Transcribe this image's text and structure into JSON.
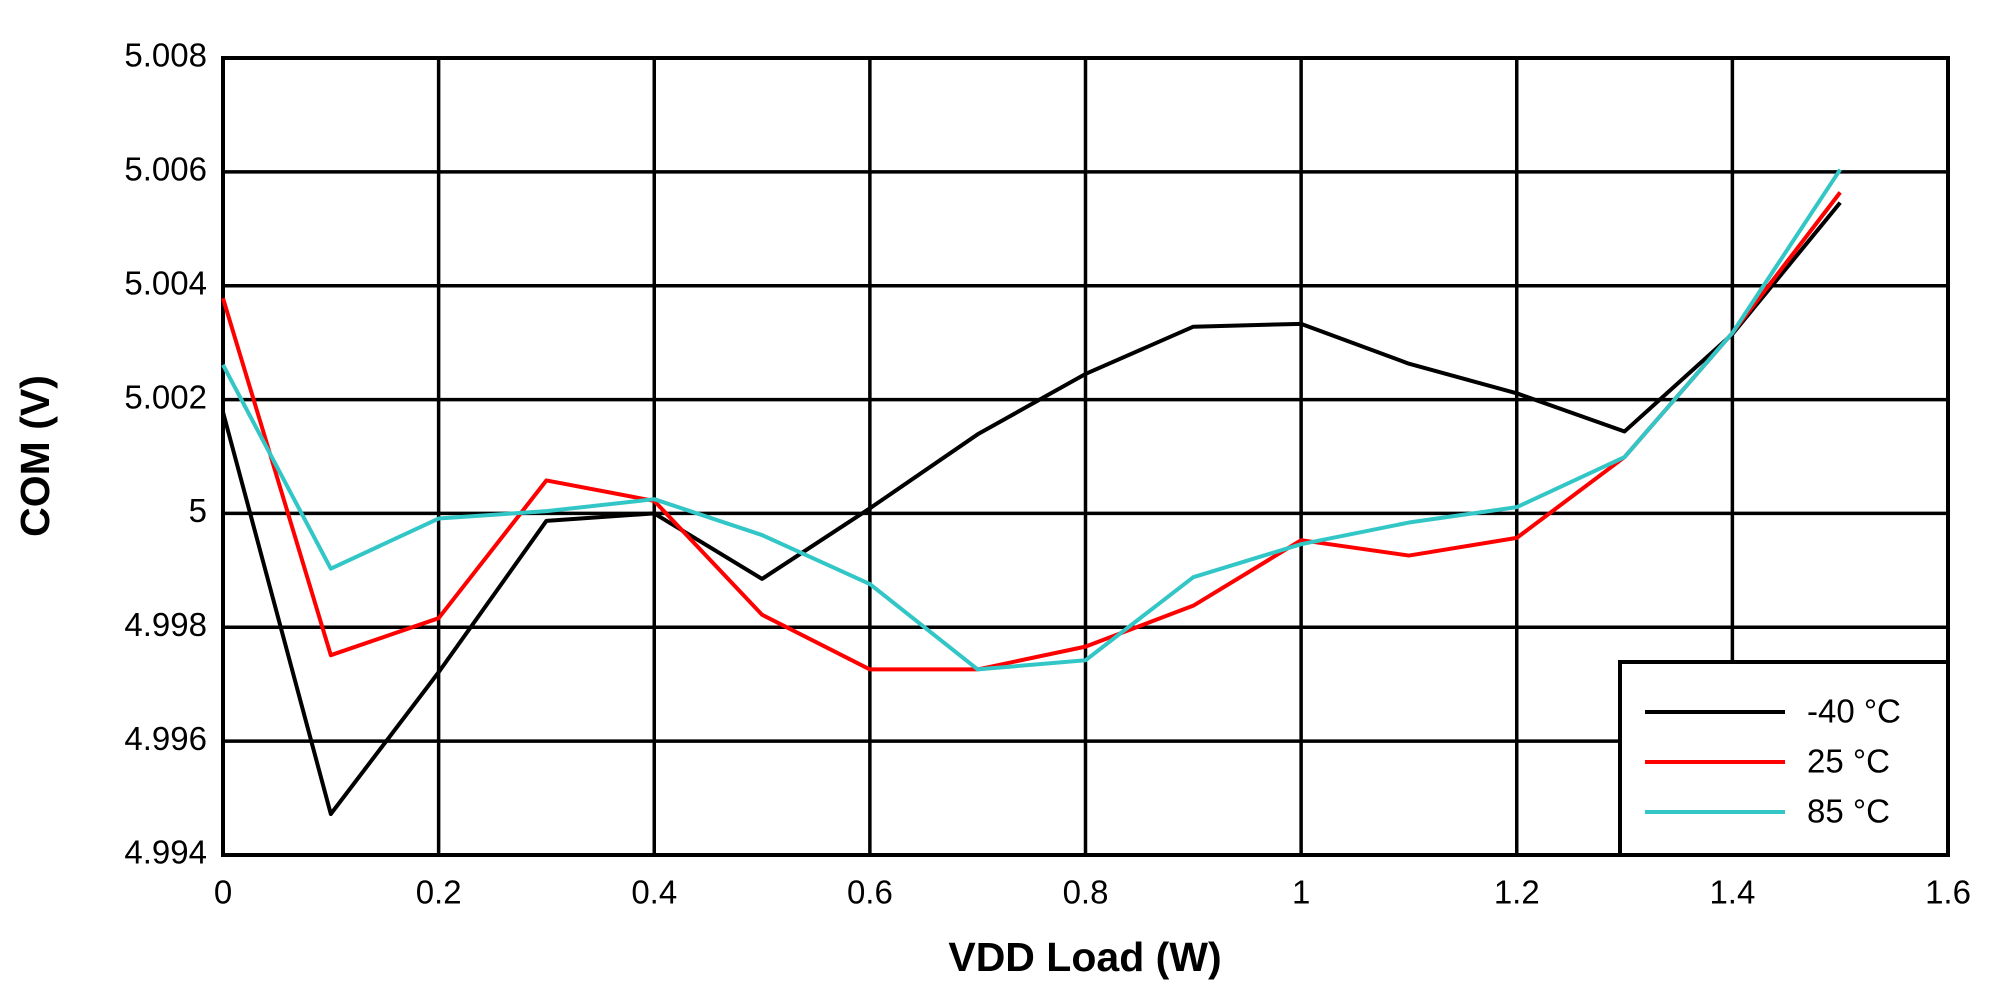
{
  "chart_data": {
    "type": "line",
    "x_label": "VDD Load (W)",
    "y_label": "COM (V)",
    "x": [
      0,
      0.1,
      0.2,
      0.3,
      0.4,
      0.5,
      0.6,
      0.7,
      0.8,
      0.9,
      1.0,
      1.1,
      1.2,
      1.3,
      1.4,
      1.5
    ],
    "series": [
      {
        "name": "-40 °C",
        "color": "#000000",
        "values": [
          5.00178,
          4.99472,
          4.99721,
          4.99987,
          5.0,
          4.99885,
          5.00009,
          5.00139,
          5.00245,
          5.00328,
          5.00333,
          5.00263,
          5.00211,
          5.00144,
          5.00315,
          5.00546
        ]
      },
      {
        "name": "25 °C",
        "color": "#ff0000",
        "values": [
          5.00378,
          4.99751,
          4.99816,
          5.00058,
          5.00022,
          4.99822,
          4.99726,
          4.99726,
          4.99766,
          4.99838,
          4.99953,
          4.99926,
          4.99957,
          5.00099,
          5.00317,
          5.00564
        ]
      },
      {
        "name": "85 °C",
        "color": "#33c6c6",
        "values": [
          5.00261,
          4.99903,
          4.99991,
          5.00004,
          5.00025,
          4.99962,
          4.99876,
          4.99726,
          4.99742,
          4.99888,
          4.99946,
          4.99984,
          5.00011,
          5.00099,
          5.00317,
          5.00604
        ]
      }
    ],
    "xlim": [
      0,
      1.6
    ],
    "xticks": [
      0,
      0.2,
      0.4,
      0.6,
      0.8,
      1,
      1.2,
      1.4,
      1.6
    ],
    "ylim": [
      4.994,
      5.008
    ],
    "yticks": [
      4.994,
      4.996,
      4.998,
      5,
      5.002,
      5.004,
      5.006,
      5.008
    ],
    "grid": true,
    "legend": "lower right"
  }
}
